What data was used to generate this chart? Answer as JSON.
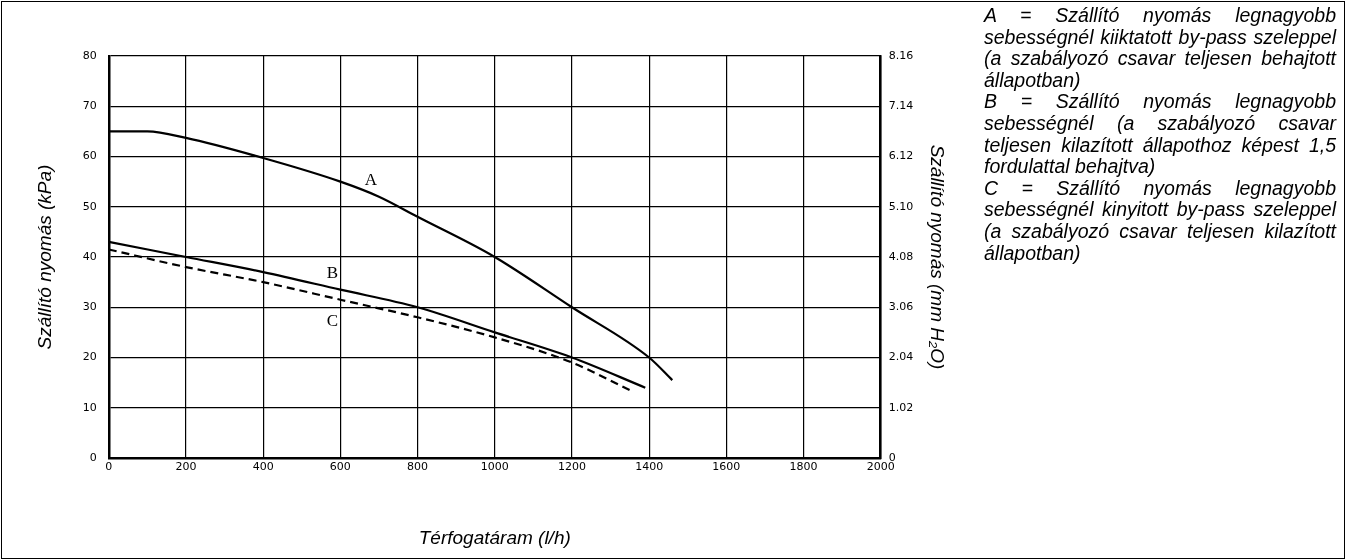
{
  "chart_data": {
    "type": "line",
    "xlabel": "Térfogatáram (l/h)",
    "ylabel": "Szállító nyomás (kPa)",
    "y2label": "Szállító nyomás (mm H₂O)",
    "xlim": [
      0,
      2000
    ],
    "xticks": [
      0,
      200,
      400,
      600,
      800,
      1000,
      1200,
      1400,
      1600,
      1800,
      2000
    ],
    "ylim": [
      0,
      80
    ],
    "yticks": [
      0,
      10,
      20,
      30,
      40,
      50,
      60,
      70,
      80
    ],
    "y2lim": [
      0,
      8.16
    ],
    "y2ticks": [
      0,
      1.02,
      2.04,
      3.06,
      4.08,
      {
        "value": 5.1,
        "label": "5.10"
      },
      6.12,
      7.14,
      8.16
    ],
    "grid": true,
    "legend": false,
    "marker": "none",
    "series": [
      {
        "name": "A",
        "color": "#000000",
        "line_style": "solid",
        "x": [
          0,
          100,
          200,
          400,
          600,
          700,
          800,
          1000,
          1200,
          1400,
          1460
        ],
        "values": [
          65,
          65,
          63.7,
          59.7,
          55,
          52,
          48,
          40,
          30,
          20,
          15.5
        ]
      },
      {
        "name": "B",
        "color": "#000000",
        "line_style": "solid",
        "x": [
          0,
          200,
          400,
          600,
          800,
          1000,
          1200,
          1390
        ],
        "values": [
          43,
          40,
          37,
          33.5,
          30,
          25,
          20,
          14
        ]
      },
      {
        "name": "C",
        "color": "#000000",
        "line_style": "dashed",
        "x": [
          0,
          200,
          400,
          600,
          800,
          1000,
          1200,
          1350
        ],
        "values": [
          41.5,
          38,
          35,
          31.5,
          28,
          24,
          19,
          13.5
        ]
      }
    ],
    "annotations": [
      "A = Szállító nyomás legnagyobb sebességnél kiiktatott by-pass szeleppel (a szabályozó csavar teljesen behajtott állapotban)",
      "B = Szállító nyomás legnagyobb sebességnél (a szabályozó csavar teljesen kilazított állapothoz képest 1,5 fordulattal behajtva)",
      "C = Szállító nyomás legnagyobb sebességnél kinyitott by-pass szeleppel (a szabályozó csavar teljesen kilazított állapotban)"
    ]
  }
}
